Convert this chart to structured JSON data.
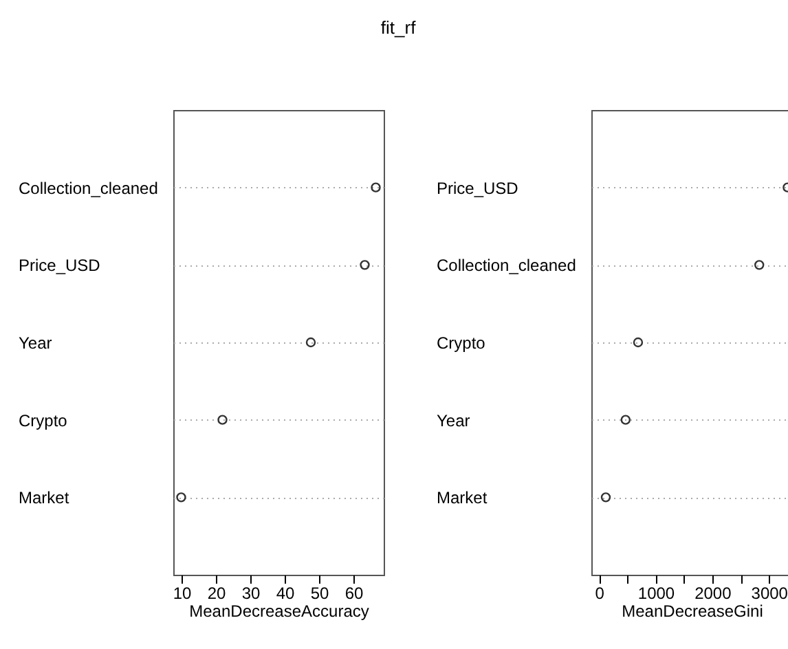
{
  "chart_data": [
    {
      "type": "scatter",
      "title": "fit_rf",
      "orientation": "horizontal",
      "categories": [
        "Collection_cleaned",
        "Price_USD",
        "Year",
        "Crypto",
        "Market"
      ],
      "values": [
        66.5,
        63.3,
        47.6,
        21.9,
        9.9
      ],
      "color": "#333333",
      "marker": "circle",
      "grid": "y",
      "xlabel": "MeanDecreaseAccuracy",
      "xlim": [
        7.6,
        68.8
      ],
      "xticks": [
        10,
        20,
        30,
        40,
        50,
        60
      ]
    },
    {
      "type": "scatter",
      "orientation": "horizontal",
      "categories": [
        "Price_USD",
        "Collection_cleaned",
        "Crypto",
        "Year",
        "Market"
      ],
      "values": [
        3330,
        2830,
        690,
        470,
        120
      ],
      "color": "#333333",
      "marker": "circle",
      "grid": "y",
      "xlabel": "MeanDecreaseGini",
      "xlim": [
        -135,
        3410
      ],
      "xticks": [
        0,
        {
          "value": 500,
          "label": null
        },
        1000,
        {
          "value": 1500,
          "label": null
        },
        2000,
        {
          "value": 2500,
          "label": null
        },
        3000
      ]
    }
  ]
}
